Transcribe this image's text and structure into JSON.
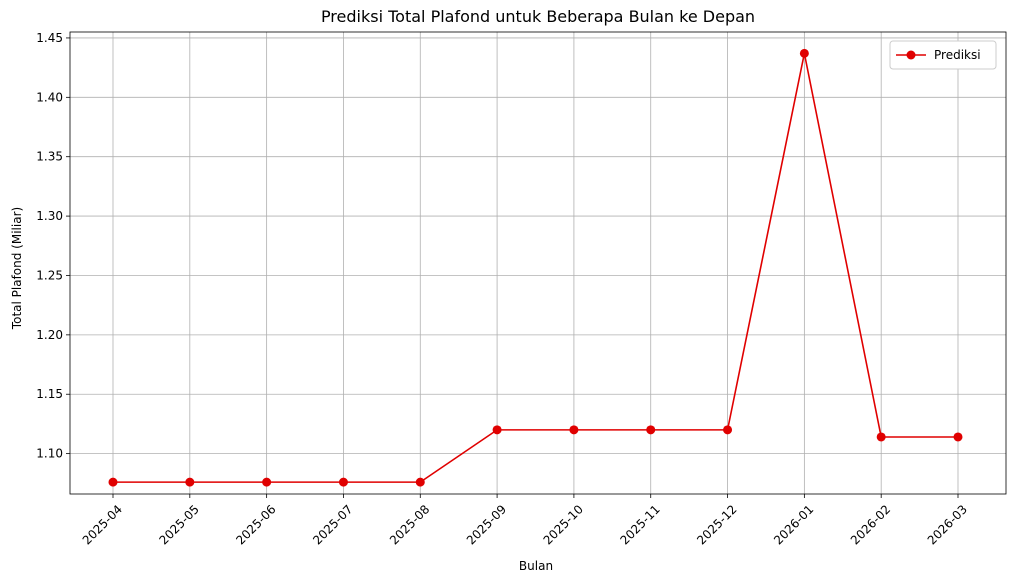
{
  "chart_data": {
    "type": "line",
    "title": "Prediksi Total Plafond untuk Beberapa Bulan ke Depan",
    "xlabel": "Bulan",
    "ylabel": "Total Plafond (Miliar)",
    "categories": [
      "2025-04",
      "2025-05",
      "2025-06",
      "2025-07",
      "2025-08",
      "2025-09",
      "2025-10",
      "2025-11",
      "2025-12",
      "2026-01",
      "2026-02",
      "2026-03"
    ],
    "series": [
      {
        "name": "Prediksi",
        "color": "#e00000",
        "marker": "circle",
        "values": [
          1.076,
          1.076,
          1.076,
          1.076,
          1.076,
          1.12,
          1.12,
          1.12,
          1.12,
          1.437,
          1.114,
          1.114
        ]
      }
    ],
    "ylim": [
      1.066,
      1.455
    ],
    "yticks": [
      "1.10",
      "1.15",
      "1.20",
      "1.25",
      "1.30",
      "1.35",
      "1.40",
      "1.45"
    ],
    "grid": true,
    "legend_position": "top-right"
  }
}
